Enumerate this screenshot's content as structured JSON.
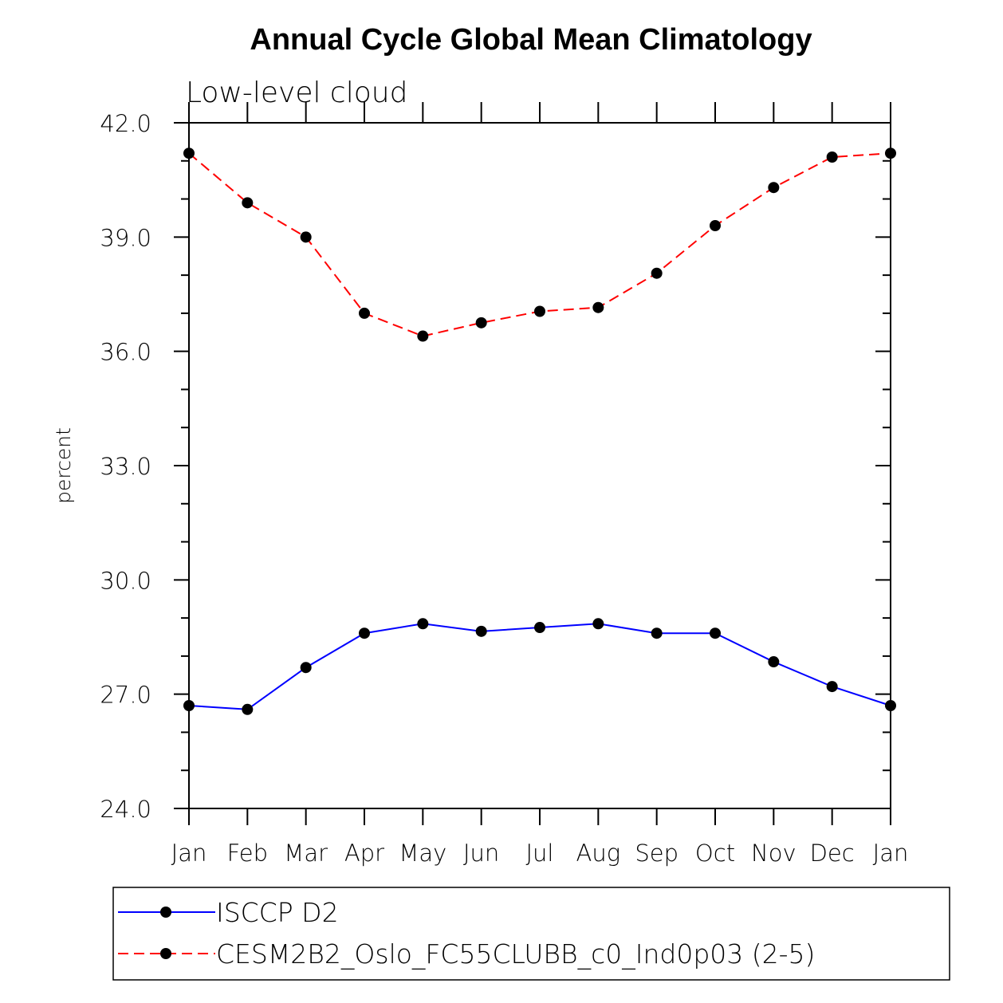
{
  "chart_data": {
    "type": "line",
    "title": "Annual Cycle Global Mean Climatology",
    "subtitle": "Low-level cloud",
    "xlabel": "",
    "ylabel": "percent",
    "categories": [
      "Jan",
      "Feb",
      "Mar",
      "Apr",
      "May",
      "Jun",
      "Jul",
      "Aug",
      "Sep",
      "Oct",
      "Nov",
      "Dec",
      "Jan"
    ],
    "ylim": [
      24.0,
      42.0
    ],
    "yticks": [
      "24.0",
      "27.0",
      "30.0",
      "33.0",
      "36.0",
      "39.0",
      "42.0"
    ],
    "series": [
      {
        "name": "ISCCP D2",
        "color": "#0000ff",
        "dash": "solid",
        "values": [
          26.7,
          26.6,
          27.7,
          28.6,
          28.85,
          28.65,
          28.75,
          28.85,
          28.6,
          28.6,
          27.85,
          27.2,
          26.7
        ]
      },
      {
        "name": "CESM2B2_Oslo_FC55CLUBB_c0_Ind0p03 (2-5)",
        "color": "#ff0000",
        "dash": "dashed",
        "values": [
          41.2,
          39.9,
          39.0,
          37.0,
          36.4,
          36.75,
          37.05,
          37.15,
          38.05,
          39.3,
          40.3,
          41.1,
          41.2
        ]
      }
    ],
    "marker_color": "#000000",
    "legend_position": "bottom"
  }
}
